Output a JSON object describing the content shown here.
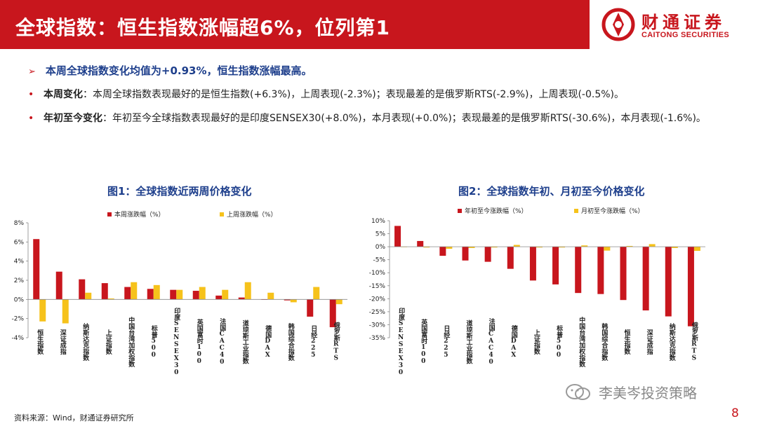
{
  "header": {
    "title": "全球指数：恒生指数涨幅超6%，位列第1",
    "logo_cn": "财通证券",
    "logo_en": "CAITONG SECURITIES"
  },
  "summary": {
    "arrow": "➢",
    "text": "本周全球指数变化均值为+0.93%，恒生指数涨幅最高。"
  },
  "bullets": [
    {
      "dot": "•",
      "label": "本周变化",
      "text": "：本周全球指数表现最好的是恒生指数(+6.3%)，上周表现(-2.3%)；表现最差的是俄罗斯RTS(-2.9%)，上周表现(-0.5%)。"
    },
    {
      "dot": "•",
      "label": "年初至今变化",
      "text": "：年初至今全球指数表现最好的是印度SENSEX30(+8.0%)，本月表现(+0.0%)；表现最差的是俄罗斯RTS(-30.6%)，本月表现(-1.6%)。"
    }
  ],
  "figures": {
    "fig1_title": "图1：全球指数近两周价格变化",
    "fig2_title": "图2：全球指数年初、月初至今价格变化"
  },
  "colors": {
    "red": "#c8161d",
    "yellow": "#f6c21b",
    "blue": "#1e3f8c"
  },
  "chart_data": [
    {
      "type": "bar",
      "title": "图1：全球指数近两周价格变化",
      "categories": [
        "恒生指数",
        "深证成指",
        "纳斯达克指数",
        "上证指数",
        "中国台湾加权指数",
        "标普500",
        "印度SENSEX30",
        "英国富时100",
        "法国CAC40",
        "道琼斯工业指数",
        "德国DAX",
        "韩国综合指数",
        "日经225",
        "俄罗斯RTS"
      ],
      "series": [
        {
          "name": "本周涨跌幅（%）",
          "values": [
            6.3,
            2.9,
            2.1,
            1.7,
            1.3,
            1.1,
            1.0,
            0.9,
            0.4,
            0.2,
            0.0,
            -0.1,
            -1.8,
            -2.9
          ]
        },
        {
          "name": "上周涨跌幅（%）",
          "values": [
            -2.3,
            -2.5,
            0.7,
            0.1,
            1.8,
            1.5,
            1.0,
            1.3,
            1.0,
            1.8,
            0.7,
            -0.3,
            1.3,
            -0.5
          ]
        }
      ],
      "ylim": [
        -4,
        8
      ],
      "yticks": [
        "8%",
        "6%",
        "4%",
        "2%",
        "0%",
        "-2%",
        "-4%"
      ],
      "legend": "top"
    },
    {
      "type": "bar",
      "title": "图2：全球指数年初、月初至今价格变化",
      "categories": [
        "印度SENSEX30",
        "英国富时100",
        "日经225",
        "道琼斯工业指数",
        "法国CAC40",
        "德国DAX",
        "上证指数",
        "标普500",
        "中国台湾加权指数",
        "韩国综合指数",
        "恒生指数",
        "深证成指",
        "纳斯达克指数",
        "俄罗斯RTS"
      ],
      "series": [
        {
          "name": "年初至今涨跌幅（%）",
          "values": [
            8.0,
            2.2,
            -3.5,
            -5.3,
            -5.8,
            -8.5,
            -13.0,
            -14.5,
            -17.8,
            -18.2,
            -20.5,
            -24.5,
            -26.8,
            -30.6
          ]
        },
        {
          "name": "月初至今涨跌幅（%）",
          "values": [
            0.0,
            -0.3,
            -0.8,
            -0.5,
            -0.3,
            0.7,
            -0.3,
            -0.3,
            0.5,
            -1.5,
            0.3,
            1.0,
            -0.5,
            -1.6
          ]
        }
      ],
      "ylim": [
        -35,
        10
      ],
      "yticks": [
        "10%",
        "5%",
        "0%",
        "-5%",
        "-10%",
        "-15%",
        "-20%",
        "-25%",
        "-30%",
        "-35%"
      ],
      "legend": "top"
    }
  ],
  "footer": {
    "source": "资料来源：Wind，财通证券研究所",
    "watermark": "李美岑投资策略",
    "page": "8"
  }
}
